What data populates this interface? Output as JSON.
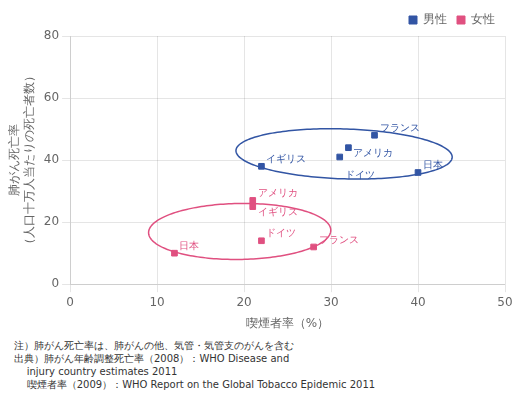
{
  "chart_data": {
    "type": "scatter",
    "xlabel": "喫煙者率（%）",
    "ylabel": [
      "肺がん死亡率",
      "（人口十万人当たりの死亡者数）"
    ],
    "series": [
      {
        "name": "男性",
        "color": "#3255a4",
        "marker": "square",
        "x": [
          22,
          32,
          31,
          35,
          40
        ],
        "values": [
          38,
          44,
          41,
          48,
          36
        ],
        "labels": [
          "イギリス",
          "アメリカ",
          "ドイツ",
          "フランス",
          "日本"
        ]
      },
      {
        "name": "女性",
        "color": "#e05080",
        "marker": "square",
        "x": [
          12,
          21,
          21,
          22,
          28
        ],
        "values": [
          10,
          27,
          25,
          14,
          12
        ],
        "labels": [
          "日本",
          "アメリカ",
          "イギリス",
          "ドイツ",
          "フランス"
        ]
      }
    ],
    "ellipses": [
      {
        "cx": 31.5,
        "cy": 42,
        "rx": 12.5,
        "ry": 8,
        "angle": -8,
        "color": "#3255a4"
      },
      {
        "cx": 19.5,
        "cy": 17,
        "rx": 10.5,
        "ry": 9,
        "angle": 8,
        "color": "#e05080"
      }
    ],
    "notes": [
      "注）肺がん死亡率は、肺がんの他、気管・気管支のがんを含む",
      "出典）肺がん年齢調整死亡率（2008）：WHO Disease and",
      "    injury country estimates 2011",
      "    喫煙者率（2009）：WHO Report on the Global Tobacco Epidemic 2011"
    ],
    "xlim": [
      0,
      50
    ],
    "ylim": [
      0,
      80
    ],
    "xticks": [
      0,
      10,
      20,
      30,
      40,
      50
    ],
    "yticks": [
      0,
      20,
      40,
      60,
      80
    ],
    "grid": true,
    "legend": "upper right"
  }
}
